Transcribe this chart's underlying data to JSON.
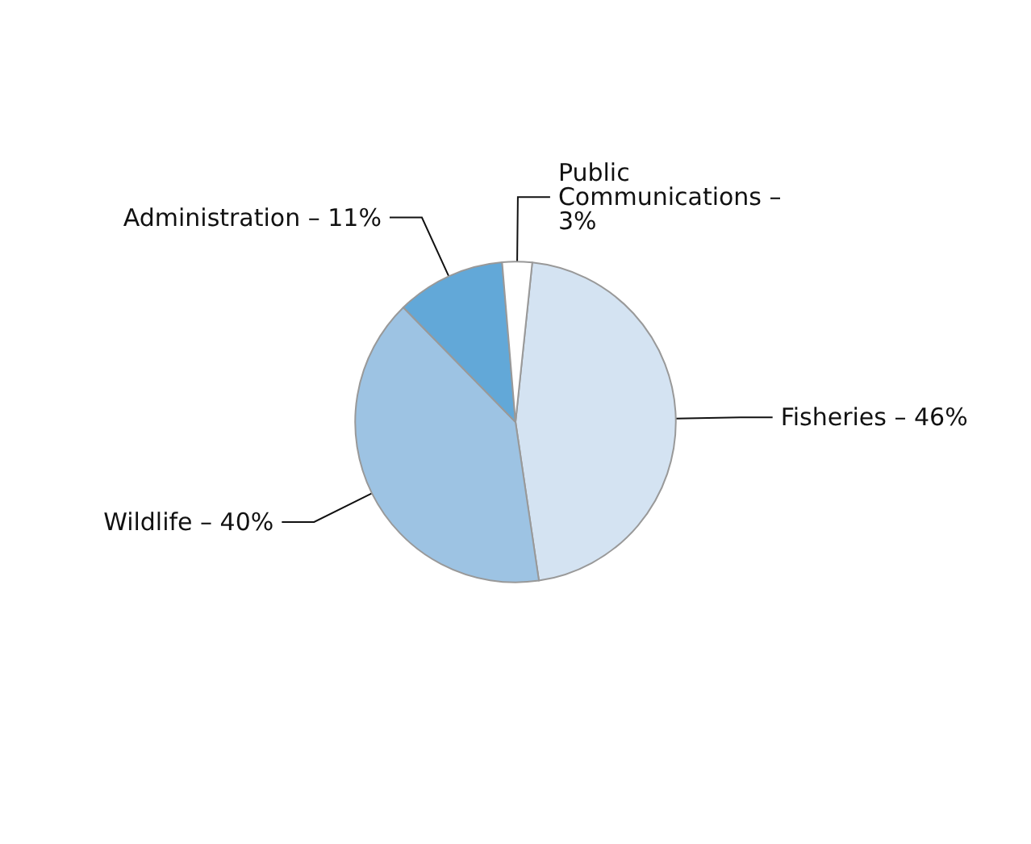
{
  "chart_data": {
    "type": "pie",
    "categories": [
      "Fisheries – 46%",
      "Wildlife – 40%",
      "Administration – 11%",
      "Public Communications – 3%"
    ],
    "values": [
      46,
      40,
      11,
      3
    ],
    "colors": [
      "#d4e3f2",
      "#9dc3e3",
      "#62a8d8",
      "#ffffff"
    ]
  }
}
